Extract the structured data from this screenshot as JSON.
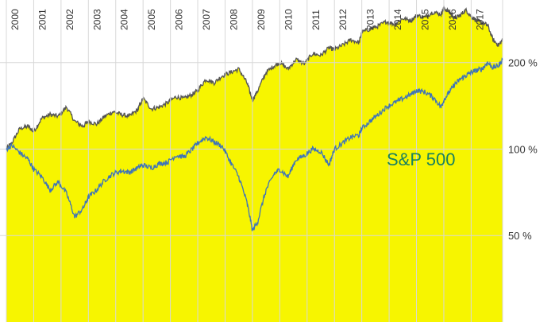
{
  "chart_data": {
    "type": "line",
    "x_ticks": [
      "2000",
      "2001",
      "2002",
      "2003",
      "2004",
      "2005",
      "2006",
      "2007",
      "2008",
      "2009",
      "2010",
      "2011",
      "2012",
      "2013",
      "2014",
      "2015",
      "2016",
      "2017"
    ],
    "y_ticks": [
      {
        "value": 50,
        "label": "50 %"
      },
      {
        "value": 100,
        "label": "100 %"
      },
      {
        "value": 200,
        "label": "200 %"
      }
    ],
    "y_scale": "log",
    "ylim": [
      25,
      320
    ],
    "xlim": [
      2000.0,
      2018.15
    ],
    "grid": true,
    "annotations": [
      {
        "text": "S&P 500",
        "series": "S&P 500"
      }
    ],
    "colors": {
      "fill_series": "#f7f500",
      "fill_line": "#555555",
      "sp500": "#3f74b8",
      "annotation": "#19815f",
      "grid": "#d8d8d8"
    },
    "series": [
      {
        "name": "",
        "style": "area",
        "x": [
          2000.0,
          2000.2,
          2000.5,
          2000.8,
          2001.0,
          2001.3,
          2001.6,
          2001.9,
          2002.2,
          2002.5,
          2002.8,
          2003.0,
          2003.3,
          2003.6,
          2003.9,
          2004.2,
          2004.5,
          2004.8,
          2005.0,
          2005.3,
          2005.6,
          2005.9,
          2006.2,
          2006.5,
          2006.8,
          2007.0,
          2007.3,
          2007.6,
          2007.9,
          2008.2,
          2008.5,
          2008.8,
          2009.0,
          2009.2,
          2009.5,
          2009.8,
          2010.0,
          2010.3,
          2010.6,
          2010.9,
          2011.2,
          2011.5,
          2011.8,
          2012.0,
          2012.3,
          2012.6,
          2012.9,
          2013.0,
          2013.3,
          2013.6,
          2013.9,
          2014.2,
          2014.5,
          2014.8,
          2015.0,
          2015.3,
          2015.6,
          2015.9,
          2016.0,
          2016.2,
          2016.4,
          2016.6,
          2016.8,
          2017.0,
          2017.2,
          2017.4,
          2017.6,
          2017.8,
          2018.0,
          2018.15
        ],
        "values": [
          100,
          105,
          118,
          120,
          115,
          128,
          132,
          130,
          140,
          125,
          120,
          125,
          122,
          130,
          135,
          132,
          130,
          137,
          150,
          138,
          140,
          145,
          152,
          150,
          155,
          160,
          175,
          170,
          180,
          185,
          190,
          170,
          148,
          160,
          185,
          195,
          200,
          190,
          205,
          198,
          215,
          212,
          225,
          222,
          230,
          240,
          235,
          255,
          262,
          268,
          278,
          272,
          285,
          280,
          292,
          288,
          300,
          295,
          310,
          300,
          285,
          292,
          305,
          290,
          280,
          275,
          270,
          240,
          230,
          240
        ]
      },
      {
        "name": "S&P 500",
        "style": "line",
        "x": [
          2000.0,
          2000.2,
          2000.5,
          2000.8,
          2001.0,
          2001.3,
          2001.6,
          2001.9,
          2002.2,
          2002.5,
          2002.8,
          2003.0,
          2003.3,
          2003.6,
          2003.9,
          2004.2,
          2004.5,
          2004.8,
          2005.0,
          2005.3,
          2005.6,
          2005.9,
          2006.2,
          2006.5,
          2006.8,
          2007.0,
          2007.3,
          2007.6,
          2007.9,
          2008.2,
          2008.5,
          2008.8,
          2009.0,
          2009.2,
          2009.5,
          2009.8,
          2010.0,
          2010.3,
          2010.6,
          2010.9,
          2011.2,
          2011.5,
          2011.8,
          2012.0,
          2012.3,
          2012.6,
          2012.9,
          2013.0,
          2013.3,
          2013.6,
          2013.9,
          2014.2,
          2014.5,
          2014.8,
          2015.0,
          2015.3,
          2015.6,
          2015.9,
          2016.0,
          2016.2,
          2016.4,
          2016.6,
          2016.8,
          2017.0,
          2017.2,
          2017.4,
          2017.6,
          2017.8,
          2018.0,
          2018.15
        ],
        "values": [
          100,
          103,
          97,
          92,
          85,
          80,
          72,
          77,
          70,
          58,
          62,
          68,
          72,
          78,
          82,
          84,
          83,
          86,
          88,
          86,
          89,
          90,
          95,
          94,
          100,
          105,
          110,
          106,
          102,
          90,
          80,
          65,
          52,
          56,
          72,
          82,
          85,
          80,
          92,
          95,
          100,
          98,
          88,
          100,
          105,
          110,
          112,
          118,
          125,
          132,
          140,
          145,
          150,
          155,
          160,
          158,
          152,
          140,
          148,
          158,
          168,
          175,
          180,
          185,
          188,
          190,
          200,
          192,
          195,
          205
        ]
      }
    ]
  }
}
